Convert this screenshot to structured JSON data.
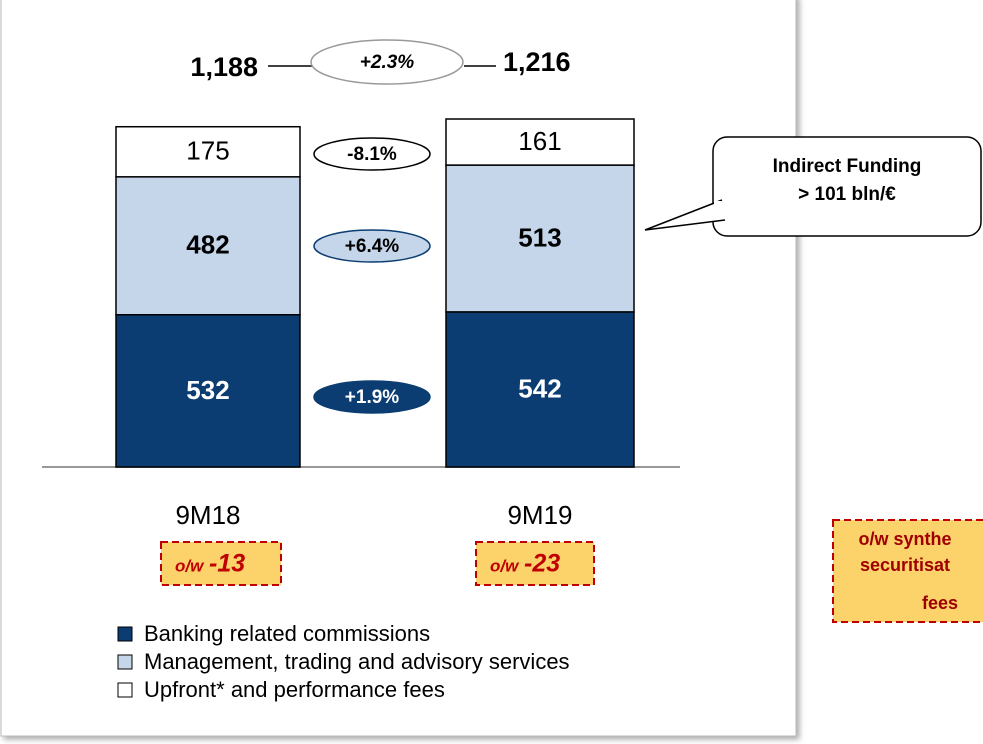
{
  "chart_data": {
    "type": "bar",
    "stacked": true,
    "categories": [
      "9M18",
      "9M19"
    ],
    "series": [
      {
        "name": "Banking related commissions",
        "color": "#0b3d72",
        "values": [
          532,
          542
        ]
      },
      {
        "name": "Management, trading and advisory services",
        "color": "#c6d6ea",
        "values": [
          482,
          513
        ]
      },
      {
        "name": "Upfront* and performance fees",
        "color": "#ffffff",
        "values": [
          175,
          161
        ]
      }
    ],
    "totals": [
      1188,
      1216
    ],
    "total_labels": [
      "1,188",
      "1,216"
    ],
    "total_growth": "+2.3%",
    "series_growth": [
      "+1.9%",
      "+6.4%",
      "-8.1%"
    ],
    "notes": [
      {
        "prefix": "o/w",
        "value": -13
      },
      {
        "prefix": "o/w",
        "value": -23
      }
    ],
    "callout": [
      "Indirect Funding",
      "> 101 bln/€"
    ],
    "side_note": [
      "o/w synthe",
      "securitisat",
      "fees"
    ]
  }
}
